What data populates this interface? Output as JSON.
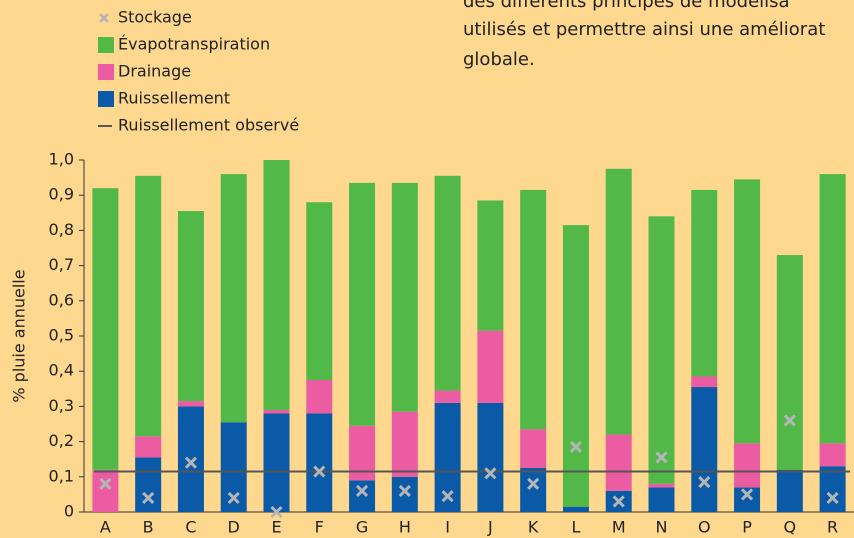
{
  "paragraph": [
    "des différents principes de modélisa",
    "utilisés et permettre ainsi une améliorat",
    "globale."
  ],
  "chart_data": {
    "type": "bar",
    "stacked": true,
    "y_label": "% pluie annuelle",
    "categories": [
      "A",
      "B",
      "C",
      "D",
      "E",
      "F",
      "G",
      "H",
      "I",
      "J",
      "K",
      "L",
      "M",
      "N",
      "O",
      "P",
      "Q",
      "R"
    ],
    "series": [
      {
        "name": "Stockage",
        "type": "scatter",
        "color": "#b5b5b5",
        "values": [
          0.08,
          0.04,
          0.14,
          0.04,
          0.0,
          0.115,
          0.06,
          0.06,
          0.045,
          0.11,
          0.08,
          0.185,
          0.03,
          0.155,
          0.085,
          0.05,
          0.26,
          0.04
        ]
      },
      {
        "name": "Évapotranspiration",
        "type": "bar",
        "color": "#52b848",
        "values": [
          0.8,
          0.74,
          0.54,
          0.705,
          0.71,
          0.505,
          0.69,
          0.65,
          0.61,
          0.37,
          0.68,
          0.8,
          0.755,
          0.76,
          0.53,
          0.75,
          0.61,
          0.765
        ]
      },
      {
        "name": "Drainage",
        "type": "bar",
        "color": "#ec5ca2",
        "values": [
          0.12,
          0.06,
          0.015,
          0,
          0.01,
          0.095,
          0.155,
          0.185,
          0.035,
          0.205,
          0.11,
          0,
          0.16,
          0.01,
          0.03,
          0.125,
          0,
          0.065
        ]
      },
      {
        "name": "Ruissellement",
        "type": "bar",
        "color": "#0b5aa8",
        "values": [
          0,
          0.155,
          0.3,
          0.255,
          0.28,
          0.28,
          0.09,
          0.1,
          0.31,
          0.31,
          0.125,
          0.015,
          0.06,
          0.07,
          0.355,
          0.07,
          0.12,
          0.13
        ]
      },
      {
        "name": "Ruissellement observé",
        "type": "line",
        "color": "#555555",
        "value": 0.115
      }
    ],
    "ylim": [
      0,
      1.0
    ],
    "yticks": [
      0,
      {
        "value": 0.1,
        "label": "0,1"
      },
      {
        "value": 0.2,
        "label": "0,2"
      },
      {
        "value": 0.3,
        "label": "0,3"
      },
      {
        "value": 0.4,
        "label": "0,4"
      },
      {
        "value": 0.5,
        "label": "0,5"
      },
      {
        "value": 0.6,
        "label": "0,6"
      },
      {
        "value": 0.7,
        "label": "0,7"
      },
      {
        "value": 0.8,
        "label": "0,8"
      },
      {
        "value": 0.9,
        "label": "0,9"
      },
      {
        "value": 1.0,
        "label": "1,0"
      }
    ],
    "grid": false
  }
}
